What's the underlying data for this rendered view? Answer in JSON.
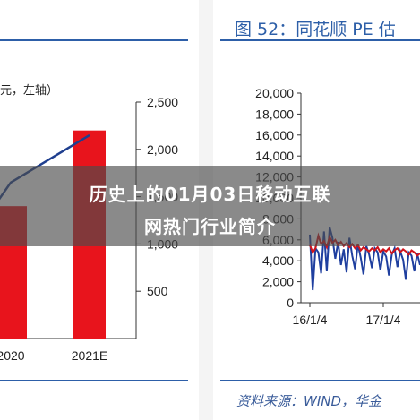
{
  "headline": {
    "line1": "历史上的01月03日移动互联",
    "line2": "网热门行业简介"
  },
  "left_figure": {
    "axis_label": "元，左轴）",
    "chart_data": {
      "type": "bar",
      "categories": [
        "2020",
        "2021E"
      ],
      "values": [
        1400,
        2200
      ],
      "line_values": [
        1650,
        2150
      ],
      "y_ticks": [
        "2,500",
        "2,000",
        "1,500",
        "1,000",
        "500"
      ],
      "ylim": [
        0,
        2500
      ]
    },
    "colors": {
      "bar": "#e8141c",
      "line": "#1f3f8f",
      "axis": "#2d5fa8"
    }
  },
  "right_figure": {
    "title": "图 52：同花顺 PE 估",
    "source": "资料来源：WIND，华金",
    "chart_data": {
      "type": "line",
      "y_ticks": [
        "20,000",
        "18,000",
        "16,000",
        "14,000",
        "12,000",
        "10,000",
        "8,000",
        "6,000",
        "4,000",
        "2,000",
        "0"
      ],
      "x_ticks": [
        "16/1/4",
        "17/1/4"
      ],
      "ylim": [
        0,
        20000
      ],
      "series": [
        {
          "color": "#1f3f9f",
          "values": [
            6500,
            1200,
            5200,
            4800,
            2800,
            6800,
            3000,
            7200,
            6200,
            4200,
            5800,
            3600,
            5100,
            2900,
            6200,
            4500,
            3200,
            5600,
            4300,
            2700,
            5400,
            4600,
            3300,
            5200,
            4800,
            3100,
            4900,
            4400,
            2600,
            4600,
            5200,
            3400,
            4900,
            4100,
            2200,
            4800,
            4500,
            3000,
            4700,
            3600
          ]
        },
        {
          "color": "#d0141c",
          "values": [
            5500,
            4800,
            5200,
            6400,
            5600,
            5900,
            5300,
            6300,
            5700,
            6000,
            5500,
            5800,
            5400,
            5700,
            5300,
            5600,
            5200,
            5500,
            5000,
            5300,
            5100,
            4900,
            5200,
            5000,
            5300,
            4800,
            5100,
            4900,
            5200,
            4700,
            5000,
            5200,
            4800,
            5100,
            4900,
            4600,
            5000,
            4800,
            4500,
            4700
          ]
        }
      ]
    },
    "colors": {
      "axis": "#2d5fa8"
    }
  }
}
